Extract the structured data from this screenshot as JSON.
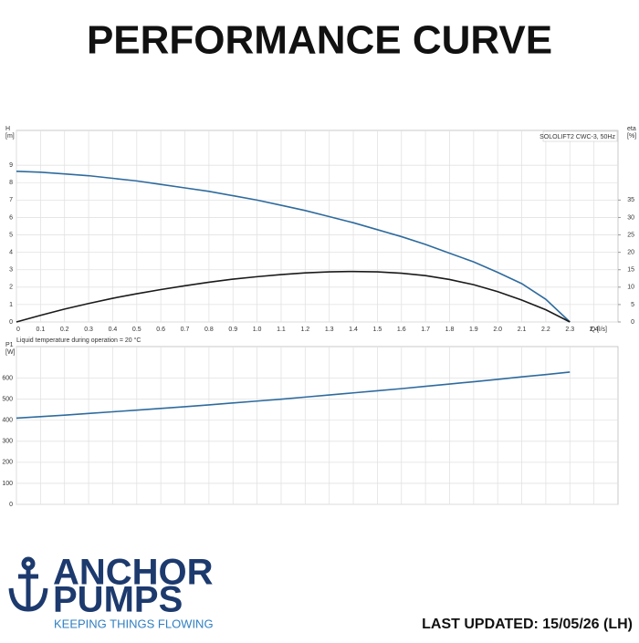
{
  "header": {
    "title": "PERFORMANCE CURVE"
  },
  "chart_data": [
    {
      "type": "line",
      "annotation": "SOLOLIFT2 CWC-3, 50Hz",
      "y_label": "H",
      "y_unit": "[m]",
      "y2_label": "eta",
      "y2_unit": "[%]",
      "x_label": "Q [l/s]",
      "x": [
        0,
        0.1,
        0.2,
        0.3,
        0.4,
        0.5,
        0.6,
        0.7,
        0.8,
        0.9,
        1.0,
        1.1,
        1.2,
        1.3,
        1.4,
        1.5,
        1.6,
        1.7,
        1.8,
        1.9,
        2.0,
        2.1,
        2.2,
        2.3
      ],
      "series": [
        {
          "name": "H",
          "color": "#2e6b9e",
          "values": [
            8.65,
            8.6,
            8.5,
            8.4,
            8.25,
            8.1,
            7.9,
            7.7,
            7.5,
            7.25,
            7.0,
            6.7,
            6.4,
            6.05,
            5.7,
            5.3,
            4.9,
            4.45,
            3.95,
            3.45,
            2.85,
            2.2,
            1.3,
            0
          ]
        },
        {
          "name": "eta",
          "color": "#1a1a1a",
          "axis": "y2",
          "values": [
            0,
            1.9,
            3.7,
            5.3,
            6.8,
            8.1,
            9.3,
            10.4,
            11.4,
            12.3,
            13.0,
            13.6,
            14.1,
            14.4,
            14.5,
            14.4,
            14.0,
            13.3,
            12.2,
            10.7,
            8.7,
            6.3,
            3.5,
            0
          ]
        }
      ],
      "xlim": [
        0,
        2.5
      ],
      "xticks": [
        0,
        0.1,
        0.2,
        0.3,
        0.4,
        0.5,
        0.6,
        0.7,
        0.8,
        0.9,
        {
          "value": 1,
          "label": "1.0"
        },
        1.1,
        1.2,
        1.3,
        1.4,
        1.5,
        1.6,
        1.7,
        1.8,
        1.9,
        {
          "value": 2,
          "label": "2.0"
        },
        2.1,
        2.2,
        2.3,
        2.4
      ],
      "ylim": [
        0,
        11
      ],
      "yticks": [
        0,
        1,
        2,
        3,
        4,
        5,
        6,
        7,
        8,
        9
      ],
      "y2lim": [
        0,
        55
      ],
      "y2ticks": [
        0,
        5,
        10,
        15,
        20,
        25,
        30,
        35
      ],
      "grid": true
    },
    {
      "type": "line",
      "title": "Liquid temperature during operation = 20 °C",
      "y_label": "P1",
      "y_unit": "[W]",
      "x": [
        0,
        0.1,
        0.2,
        0.3,
        0.4,
        0.5,
        0.6,
        0.7,
        0.8,
        0.9,
        1.0,
        1.1,
        1.2,
        1.3,
        1.4,
        1.5,
        1.6,
        1.7,
        1.8,
        1.9,
        2.0,
        2.1,
        2.2,
        2.3
      ],
      "series": [
        {
          "name": "P1",
          "color": "#2e6b9e",
          "values": [
            410,
            417,
            424,
            432,
            440,
            448,
            456,
            464,
            473,
            482,
            491,
            500,
            510,
            520,
            530,
            540,
            550,
            561,
            572,
            583,
            594,
            606,
            617,
            629
          ]
        }
      ],
      "xlim": [
        0,
        2.5
      ],
      "ylim": [
        0,
        750
      ],
      "yticks": [
        0,
        100,
        200,
        300,
        400,
        500,
        600
      ],
      "grid": true
    }
  ],
  "logo": {
    "line1": "ANCHOR",
    "line2": "PUMPS",
    "tagline": "KEEPING THINGS FLOWING"
  },
  "footer": {
    "updated": "LAST UPDATED: 15/05/26 (LH)"
  }
}
